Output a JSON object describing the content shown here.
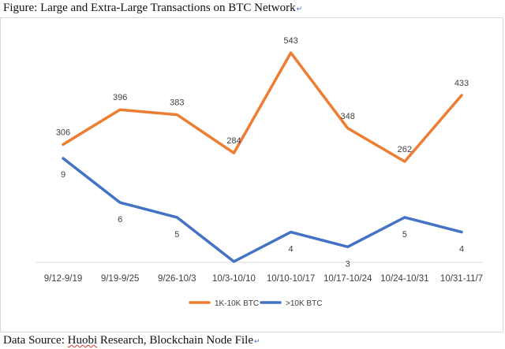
{
  "figure": {
    "title": "Figure: Large and Extra-Large Transactions on BTC Network",
    "title_mark": "↵",
    "source_prefix": "Data Source: ",
    "source_name": "Huobi",
    "source_rest": " Research, Blockchain Node File",
    "source_mark": "↵"
  },
  "chart_data": {
    "type": "line",
    "title": "",
    "xlabel": "",
    "ylabel": "",
    "categories": [
      "9/12-9/19",
      "9/19-9/25",
      "9/26-10/3",
      "10/3-10/10",
      "10/10-10/17",
      "10/17-10/24",
      "10/24-10/31",
      "10/31-11/7"
    ],
    "series": [
      {
        "name": "1K-10K BTC",
        "values": [
          306,
          396,
          383,
          284,
          543,
          348,
          262,
          433
        ],
        "color": "#ED7D31"
      },
      {
        "name": ">10K BTC",
        "values": [
          9,
          6,
          5,
          2,
          4,
          3,
          5,
          4
        ],
        "color": "#4472C4"
      }
    ],
    "point_labels": [
      [
        "306",
        "396",
        "383",
        "284",
        "543",
        "348",
        "262",
        "433"
      ],
      [
        "9",
        "6",
        "5",
        "",
        "4",
        "3",
        "5",
        "4"
      ]
    ],
    "grid": false,
    "legend_position": "bottom",
    "baseline_color": "#d9d9d9"
  }
}
